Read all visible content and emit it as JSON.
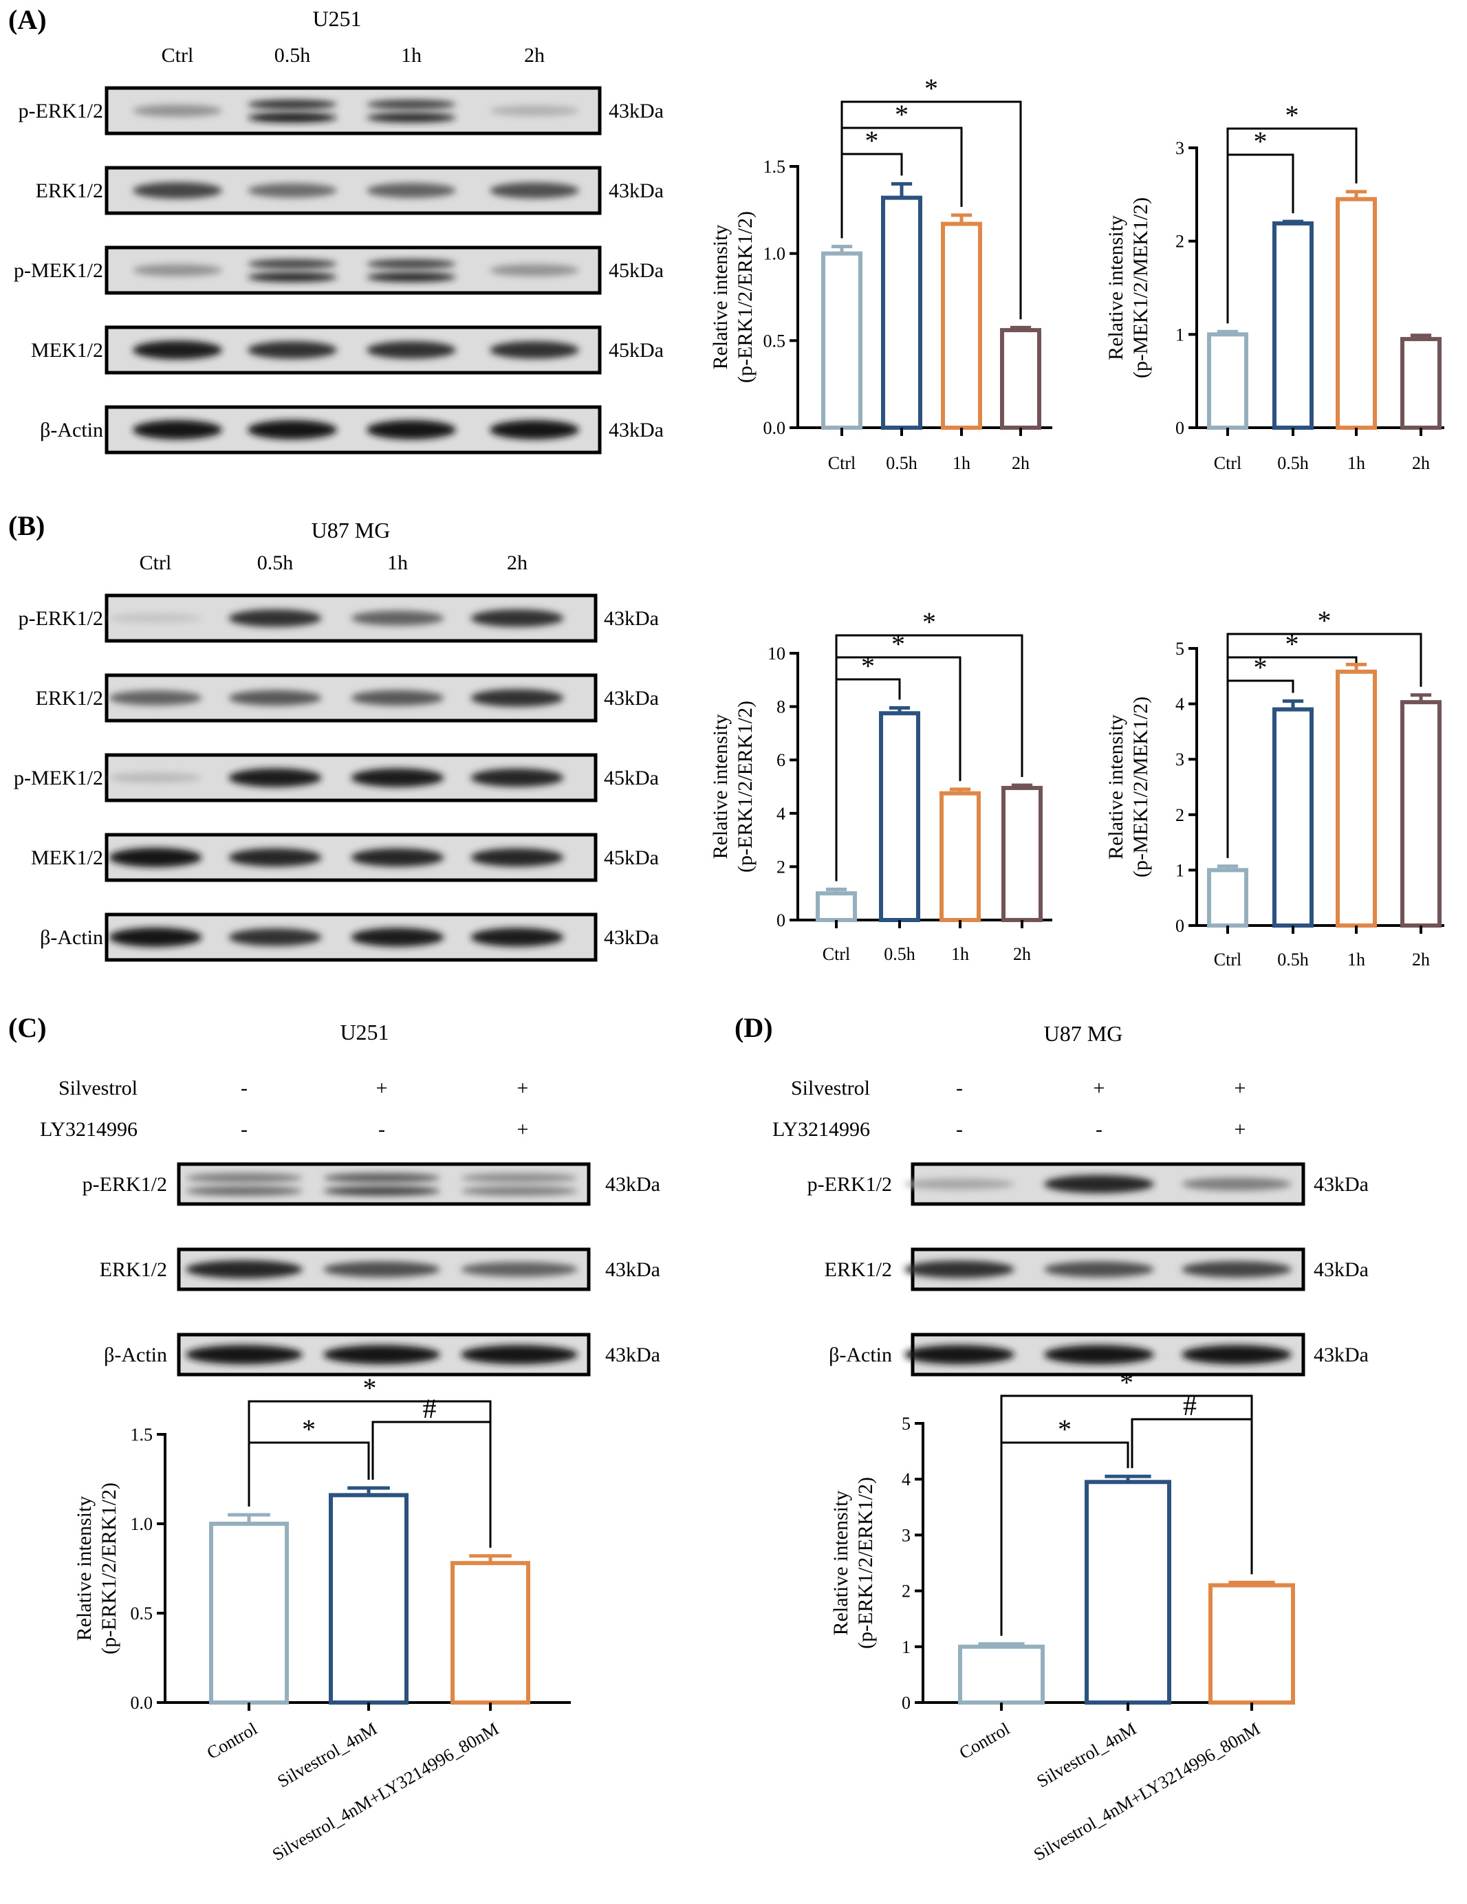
{
  "colors": {
    "ctrl": "#95afbf",
    "h05": "#2c527f",
    "h1": "#de8748",
    "h2": "#725456",
    "control": "#95afbf",
    "silvestrol": "#2c527f",
    "combo": "#de8748",
    "blot_bg": "#dcdcdc",
    "band": "#1a1a1a"
  },
  "panels": {
    "A": {
      "label": "(A)",
      "cell_line": "U251",
      "lanes": [
        "Ctrl",
        "0.5h",
        "1h",
        "2h"
      ],
      "rows": [
        {
          "protein": "p-ERK1/2",
          "kda": "43kDa",
          "intensity": [
            0.35,
            1.0,
            0.9,
            0.2
          ],
          "double": true
        },
        {
          "protein": "ERK1/2",
          "kda": "43kDa",
          "intensity": [
            0.75,
            0.55,
            0.6,
            0.7
          ],
          "double": false
        },
        {
          "protein": "p-MEK1/2",
          "kda": "45kDa",
          "intensity": [
            0.35,
            0.9,
            0.9,
            0.35
          ],
          "double": true
        },
        {
          "protein": "MEK1/2",
          "kda": "45kDa",
          "intensity": [
            0.95,
            0.85,
            0.85,
            0.85
          ],
          "double": false
        },
        {
          "protein": "β-Actin",
          "kda": "43kDa",
          "intensity": [
            1.0,
            1.0,
            1.0,
            1.0
          ],
          "double": false
        }
      ]
    },
    "B": {
      "label": "(B)",
      "cell_line": "U87 MG",
      "lanes": [
        "Ctrl",
        "0.5h",
        "1h",
        "2h"
      ],
      "rows": [
        {
          "protein": "p-ERK1/2",
          "kda": "43kDa",
          "intensity": [
            0.1,
            0.85,
            0.6,
            0.85
          ],
          "double": false
        },
        {
          "protein": "ERK1/2",
          "kda": "43kDa",
          "intensity": [
            0.6,
            0.65,
            0.65,
            0.85
          ],
          "double": false
        },
        {
          "protein": "p-MEK1/2",
          "kda": "45kDa",
          "intensity": [
            0.15,
            0.95,
            0.95,
            0.9
          ],
          "double": false
        },
        {
          "protein": "MEK1/2",
          "kda": "45kDa",
          "intensity": [
            1.0,
            0.9,
            0.9,
            0.9
          ],
          "double": false
        },
        {
          "protein": "β-Actin",
          "kda": "43kDa",
          "intensity": [
            1.0,
            0.85,
            0.95,
            0.95
          ],
          "double": false
        }
      ]
    },
    "C": {
      "label": "(C)",
      "cell_line": "U251",
      "treatments": [
        {
          "name": "Silvestrol",
          "signs": [
            "-",
            "+",
            "+"
          ]
        },
        {
          "name": "LY3214996",
          "signs": [
            "-",
            "-",
            "+"
          ]
        }
      ],
      "rows": [
        {
          "protein": "p-ERK1/2",
          "kda": "43kDa",
          "intensity": [
            0.55,
            0.75,
            0.45
          ],
          "double": true
        },
        {
          "protein": "ERK1/2",
          "kda": "43kDa",
          "intensity": [
            0.9,
            0.7,
            0.6
          ],
          "double": false
        },
        {
          "protein": "β-Actin",
          "kda": "43kDa",
          "intensity": [
            1.0,
            1.0,
            1.0
          ],
          "double": false
        }
      ]
    },
    "D": {
      "label": "(D)",
      "cell_line": "U87 MG",
      "treatments": [
        {
          "name": "Silvestrol",
          "signs": [
            "-",
            "+",
            "+"
          ]
        },
        {
          "name": "LY3214996",
          "signs": [
            "-",
            "-",
            "+"
          ]
        }
      ],
      "rows": [
        {
          "protein": "p-ERK1/2",
          "kda": "43kDa",
          "intensity": [
            0.25,
            0.9,
            0.45
          ],
          "double": false
        },
        {
          "protein": "ERK1/2",
          "kda": "43kDa",
          "intensity": [
            0.85,
            0.7,
            0.75
          ],
          "double": false
        },
        {
          "protein": "β-Actin",
          "kda": "43kDa",
          "intensity": [
            1.0,
            1.0,
            1.0
          ],
          "double": false
        }
      ]
    }
  },
  "chart_data": [
    {
      "id": "A1",
      "type": "bar",
      "categories": [
        "Ctrl",
        "0.5h",
        "1h",
        "2h"
      ],
      "values": [
        1.0,
        1.32,
        1.17,
        0.56
      ],
      "errors": [
        0.04,
        0.08,
        0.05,
        0.015
      ],
      "colors": [
        "ctrl",
        "h05",
        "h1",
        "h2"
      ],
      "ylabel": [
        "Relative intensity",
        "(p-ERK1/2/ERK1/2)"
      ],
      "ylim": [
        0,
        1.5
      ],
      "yticks": [
        0.0,
        0.5,
        1.0,
        1.5
      ],
      "yticklabels": [
        "0.0",
        "0.5",
        "1.0",
        "1.5"
      ],
      "brackets": [
        {
          "from": 0,
          "to": 1,
          "label": "*"
        },
        {
          "from": 0,
          "to": 2,
          "label": "*"
        },
        {
          "from": 0,
          "to": 3,
          "label": "*"
        }
      ]
    },
    {
      "id": "A2",
      "type": "bar",
      "categories": [
        "Ctrl",
        "0.5h",
        "1h",
        "2h"
      ],
      "values": [
        1.0,
        2.19,
        2.45,
        0.95
      ],
      "errors": [
        0.03,
        0.02,
        0.08,
        0.04
      ],
      "colors": [
        "ctrl",
        "h05",
        "h1",
        "h2"
      ],
      "ylabel": [
        "Relative intensity",
        "(p-MEK1/2/MEK1/2)"
      ],
      "ylim": [
        0,
        3
      ],
      "yticks": [
        0,
        1,
        2,
        3
      ],
      "yticklabels": [
        "0",
        "1",
        "2",
        "3"
      ],
      "brackets": [
        {
          "from": 0,
          "to": 1,
          "label": "*"
        },
        {
          "from": 0,
          "to": 2,
          "label": "*"
        }
      ]
    },
    {
      "id": "B1",
      "type": "bar",
      "categories": [
        "Ctrl",
        "0.5h",
        "1h",
        "2h"
      ],
      "values": [
        1.0,
        7.75,
        4.75,
        4.95
      ],
      "errors": [
        0.15,
        0.2,
        0.15,
        0.1
      ],
      "colors": [
        "ctrl",
        "h05",
        "h1",
        "h2"
      ],
      "ylabel": [
        "Relative intensity",
        "(p-ERK1/2/ERK1/2)"
      ],
      "ylim": [
        0,
        10
      ],
      "yticks": [
        0,
        2,
        4,
        6,
        8,
        10
      ],
      "yticklabels": [
        "0",
        "2",
        "4",
        "6",
        "8",
        "10"
      ],
      "brackets": [
        {
          "from": 0,
          "to": 1,
          "label": "*"
        },
        {
          "from": 0,
          "to": 2,
          "label": "*"
        },
        {
          "from": 0,
          "to": 3,
          "label": "*"
        }
      ]
    },
    {
      "id": "B2",
      "type": "bar",
      "categories": [
        "Ctrl",
        "0.5h",
        "1h",
        "2h"
      ],
      "values": [
        1.0,
        3.9,
        4.58,
        4.03
      ],
      "errors": [
        0.07,
        0.15,
        0.13,
        0.13
      ],
      "colors": [
        "ctrl",
        "h05",
        "h1",
        "h2"
      ],
      "ylabel": [
        "Relative intensity",
        "(p-MEK1/2/MEK1/2)"
      ],
      "ylim": [
        0,
        5
      ],
      "yticks": [
        0,
        1,
        2,
        3,
        4,
        5
      ],
      "yticklabels": [
        "0",
        "1",
        "2",
        "3",
        "4",
        "5"
      ],
      "brackets": [
        {
          "from": 0,
          "to": 1,
          "label": "*"
        },
        {
          "from": 0,
          "to": 2,
          "label": "*"
        },
        {
          "from": 0,
          "to": 3,
          "label": "*"
        }
      ]
    },
    {
      "id": "C1",
      "type": "bar",
      "categories": [
        "Control",
        "Silvestrol_4nM",
        "Silvestrol_4nM+LY3214996_80nM"
      ],
      "values": [
        1.0,
        1.16,
        0.78
      ],
      "errors": [
        0.05,
        0.04,
        0.04
      ],
      "colors": [
        "control",
        "silvestrol",
        "combo"
      ],
      "ylabel": [
        "Relative intensity",
        "(p-ERK1/2/ERK1/2)"
      ],
      "ylim": [
        0,
        1.5
      ],
      "yticks": [
        0.0,
        0.5,
        1.0,
        1.5
      ],
      "yticklabels": [
        "0.0",
        "0.5",
        "1.0",
        "1.5"
      ],
      "brackets": [
        {
          "from": 0,
          "to": 1,
          "label": "*"
        },
        {
          "from": 1,
          "to": 2,
          "label": "#"
        },
        {
          "from": 0,
          "to": 2,
          "label": "*"
        }
      ]
    },
    {
      "id": "D1",
      "type": "bar",
      "categories": [
        "Control",
        "Silvestrol_4nM",
        "Silvestrol_4nM+LY3214996_80nM"
      ],
      "values": [
        1.0,
        3.95,
        2.1
      ],
      "errors": [
        0.05,
        0.1,
        0.05
      ],
      "colors": [
        "control",
        "silvestrol",
        "combo"
      ],
      "ylabel": [
        "Relative intensity",
        "(p-ERK1/2/ERK1/2)"
      ],
      "ylim": [
        0,
        5
      ],
      "yticks": [
        0,
        1,
        2,
        3,
        4,
        5
      ],
      "yticklabels": [
        "0",
        "1",
        "2",
        "3",
        "4",
        "5"
      ],
      "brackets": [
        {
          "from": 0,
          "to": 1,
          "label": "*"
        },
        {
          "from": 1,
          "to": 2,
          "label": "#"
        },
        {
          "from": 0,
          "to": 2,
          "label": "*"
        }
      ]
    }
  ]
}
